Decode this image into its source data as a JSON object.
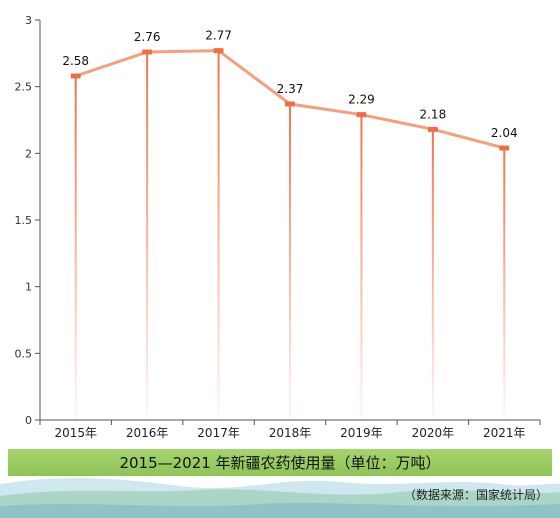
{
  "chart_data": {
    "type": "line",
    "title": "2015—2021 年新疆农药使用量（单位：万吨）",
    "categories": [
      "2015年",
      "2016年",
      "2017年",
      "2018年",
      "2019年",
      "2020年",
      "2021年"
    ],
    "series": [
      {
        "values": [
          2.58,
          2.76,
          2.77,
          2.37,
          2.29,
          2.18,
          2.04
        ]
      }
    ],
    "yticks": [
      "0",
      "0.5",
      "1",
      "1.5",
      "2",
      "2.5",
      "3"
    ],
    "ylim": [
      0,
      3
    ],
    "grid": false,
    "line_color": "#f4a07e",
    "marker_color": "#ef6c44"
  },
  "source": "（数据来源：国家统计局）"
}
